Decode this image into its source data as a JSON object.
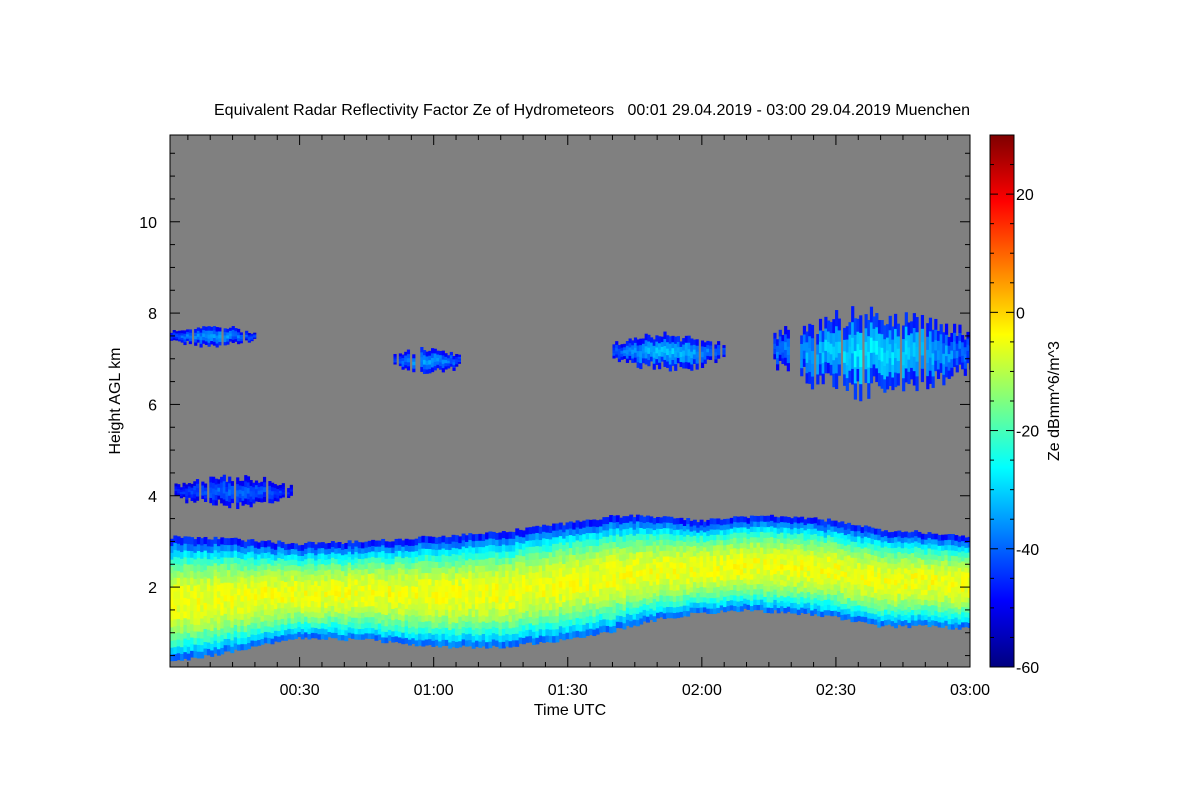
{
  "chart_data": {
    "type": "heatmap",
    "title": "Equivalent Radar Reflectivity Factor Ze of Hydrometeors   00:01 29.04.2019 - 03:00 29.04.2019 Muenchen",
    "xlabel": "Time UTC",
    "ylabel": "Height AGL km",
    "xlim_minutes": [
      1,
      180
    ],
    "ylim_km": [
      0.25,
      11.9
    ],
    "x_ticks": [
      {
        "minute": 30,
        "label": "00:30"
      },
      {
        "minute": 60,
        "label": "01:00"
      },
      {
        "minute": 90,
        "label": "01:30"
      },
      {
        "minute": 120,
        "label": "02:00"
      },
      {
        "minute": 150,
        "label": "02:30"
      },
      {
        "minute": 180,
        "label": "03:00"
      }
    ],
    "y_ticks": [
      {
        "km": 2,
        "label": "2"
      },
      {
        "km": 4,
        "label": "4"
      },
      {
        "km": 6,
        "label": "6"
      },
      {
        "km": 8,
        "label": "8"
      },
      {
        "km": 10,
        "label": "10"
      }
    ],
    "colorbar": {
      "label": "Ze dBmm^6/m^3",
      "range": [
        -60,
        30
      ],
      "ticks": [
        {
          "value": 20,
          "label": "20"
        },
        {
          "value": 0,
          "label": "0"
        },
        {
          "value": -20,
          "label": "-20"
        },
        {
          "value": -40,
          "label": "-40"
        },
        {
          "value": -60,
          "label": "-60"
        }
      ],
      "colormap": [
        "#00007f",
        "#0000ff",
        "#007fff",
        "#00ffff",
        "#7fff7f",
        "#ffff00",
        "#ff7f00",
        "#ff0000",
        "#7f0000"
      ]
    },
    "background_color": "#808080",
    "features": [
      {
        "name": "main cloud layer",
        "minutes": [
          1,
          15,
          30,
          45,
          60,
          75,
          90,
          100,
          110,
          120,
          130,
          140,
          150,
          160,
          170,
          180
        ],
        "top_km": [
          3.1,
          3.05,
          2.95,
          3.0,
          3.1,
          3.2,
          3.4,
          3.55,
          3.55,
          3.45,
          3.55,
          3.55,
          3.45,
          3.25,
          3.2,
          3.1
        ],
        "base_km": [
          0.35,
          0.6,
          0.9,
          0.85,
          0.7,
          0.7,
          0.85,
          1.05,
          1.3,
          1.45,
          1.5,
          1.45,
          1.35,
          1.15,
          1.15,
          1.1
        ],
        "core_peak_dbz": -5
      },
      {
        "name": "upper cloud 1",
        "minute_range": [
          1,
          20
        ],
        "height_km": [
          7.3,
          7.7
        ],
        "peak_dbz": -35
      },
      {
        "name": "upper cloud 2",
        "minute_range": [
          51,
          66
        ],
        "height_km": [
          6.7,
          7.2
        ],
        "peak_dbz": -35
      },
      {
        "name": "upper cloud 3",
        "minute_range": [
          100,
          125
        ],
        "height_km": [
          6.8,
          7.5
        ],
        "peak_dbz": -32
      },
      {
        "name": "upper cloud 4",
        "minute_range": [
          136,
          180
        ],
        "height_km": [
          6.3,
          8.0
        ],
        "peak_dbz": -28
      },
      {
        "name": "mid-level patches",
        "minute_range": [
          2,
          28
        ],
        "height_km": [
          3.8,
          4.4
        ],
        "peak_dbz": -40
      }
    ]
  }
}
